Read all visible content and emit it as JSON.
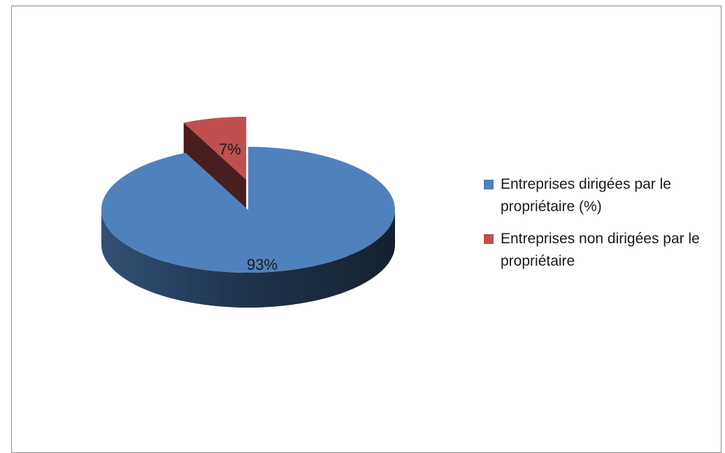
{
  "chart_data": {
    "type": "pie",
    "title": "",
    "style": "3d-exploded",
    "slices": [
      {
        "label": "Entreprises dirigées par le propriétaire (%)",
        "value": 93,
        "display": "93%",
        "color": "#4f81bd"
      },
      {
        "label": "Entreprises non dirigées par le propriétaire",
        "value": 7,
        "display": "7%",
        "color": "#c0504d"
      }
    ],
    "legend_position": "right"
  }
}
